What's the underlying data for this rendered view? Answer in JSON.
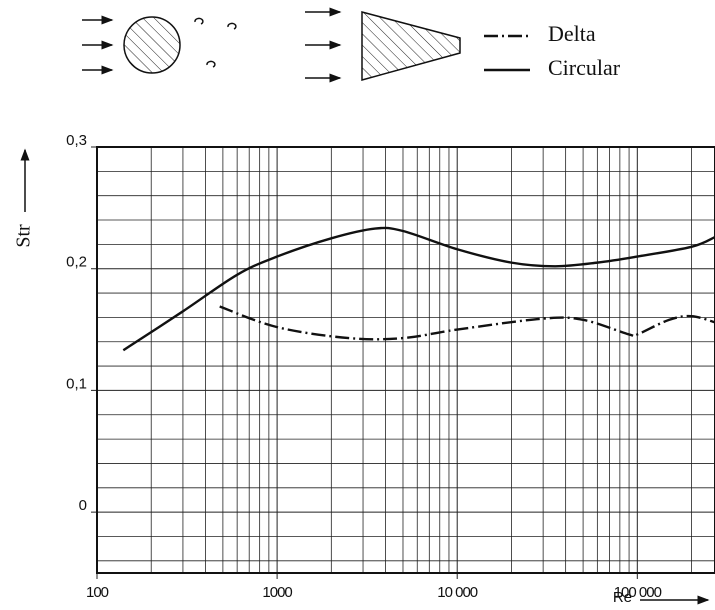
{
  "chart_data": {
    "type": "line",
    "y_label": "Str",
    "x_label": "Re",
    "log_x": true,
    "grid": true,
    "xlim": [
      100,
      270000
    ],
    "ylim": [
      -0.05,
      0.3
    ],
    "xticks": [
      100,
      1000,
      {
        "value": 10000,
        "label": "10 000"
      },
      {
        "value": 100000,
        "label": "100 000"
      }
    ],
    "xminorticks": [
      200,
      300,
      400,
      500,
      600,
      700,
      800,
      900,
      2000,
      3000,
      4000,
      5000,
      6000,
      7000,
      8000,
      9000,
      20000,
      30000,
      40000,
      50000,
      60000,
      70000,
      80000,
      90000,
      200000
    ],
    "yticks": [
      0,
      {
        "value": 0.1,
        "label": "0,1"
      },
      {
        "value": 0.2,
        "label": "0,2"
      },
      {
        "value": 0.3,
        "label": "0,3"
      }
    ],
    "yminorticks": [
      -0.04,
      -0.02,
      0.02,
      0.04,
      0.06,
      0.08,
      0.12,
      0.14,
      0.16,
      0.18,
      0.22,
      0.24,
      0.26,
      0.28
    ],
    "series": [
      {
        "name": "Delta",
        "color": "#111",
        "dash": "dashdot",
        "x": [
          480,
          1000,
          2500,
          5000,
          10000,
          30000,
          50000,
          90000,
          100000,
          150000,
          200000,
          270000
        ],
        "values": [
          0.169,
          0.152,
          0.143,
          0.143,
          0.15,
          0.159,
          0.158,
          0.146,
          0.146,
          0.158,
          0.161,
          0.156
        ]
      },
      {
        "name": "Circular",
        "color": "#111",
        "dash": "solid",
        "x": [
          140,
          300,
          600,
          1000,
          2000,
          3500,
          5000,
          10000,
          20000,
          35000,
          60000,
          100000,
          200000,
          270000
        ],
        "values": [
          0.133,
          0.165,
          0.195,
          0.21,
          0.225,
          0.233,
          0.231,
          0.216,
          0.205,
          0.202,
          0.205,
          0.21,
          0.218,
          0.226
        ]
      }
    ]
  }
}
